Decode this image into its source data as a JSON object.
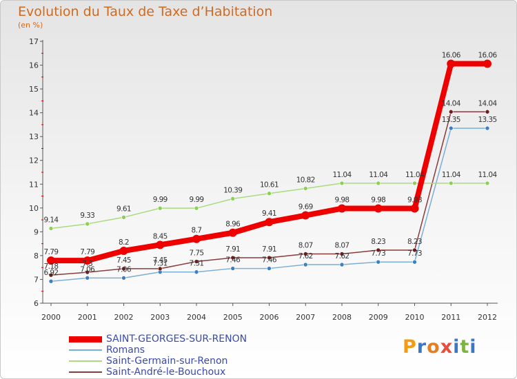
{
  "header": {
    "title": "Evolution du Taux de Taxe d’Habitation",
    "unit": "(en %)"
  },
  "logo": {
    "letters": [
      "P",
      "r",
      "o",
      "x",
      "i",
      "t",
      "i"
    ],
    "colors": [
      "#f39c12",
      "#3a78c3",
      "#e67e22",
      "#e74c3c",
      "#3a78c3",
      "#7cb342",
      "#3a78c3"
    ]
  },
  "colors": {
    "axis": "#555555",
    "tick_text": "#333333",
    "label_text": "#333333"
  },
  "chart_data": {
    "type": "line",
    "title": "Evolution du Taux de Taxe d’Habitation",
    "ylabel": "(en %)",
    "xlabel": "",
    "x": [
      "2000",
      "2001",
      "2002",
      "2003",
      "2004",
      "2005",
      "2006",
      "2007",
      "2008",
      "2009",
      "2010",
      "2011",
      "2012"
    ],
    "ylim": [
      6,
      17
    ],
    "yticks": [
      6,
      7,
      8,
      9,
      10,
      11,
      12,
      13,
      14,
      15,
      16,
      17
    ],
    "grid": false,
    "legend": "bottom-left",
    "series": [
      {
        "name": "SAINT-GEORGES-SUR-RENON",
        "values": [
          7.79,
          7.79,
          8.2,
          8.45,
          8.7,
          8.96,
          9.41,
          9.69,
          9.98,
          9.98,
          9.98,
          16.06,
          16.06
        ],
        "labels": [
          "7.79",
          "7.79",
          "8.2",
          "8.45",
          "8.7",
          "8.96",
          "9.41",
          "9.69",
          "9.98",
          "9.98",
          "9.98",
          "16.06",
          "16.06"
        ],
        "color": "#ee0000",
        "marker": "#ee0000",
        "width": 8
      },
      {
        "name": "Romans",
        "values": [
          6.92,
          7.06,
          7.06,
          7.31,
          7.31,
          7.46,
          7.46,
          7.62,
          7.62,
          7.73,
          7.73,
          13.35,
          13.35
        ],
        "labels": [
          "6.92",
          "7.06",
          "7.06",
          "7.31",
          "7.31",
          "7.46",
          "7.46",
          "7.62",
          "7.62",
          "7.73",
          "7.73",
          "13.35",
          "13.35"
        ],
        "color": "#7aaed6",
        "marker": "#3d7fc0",
        "width": 1.5
      },
      {
        "name": "Saint-Germain-sur-Renon",
        "values": [
          9.14,
          9.33,
          9.61,
          9.99,
          9.99,
          10.39,
          10.61,
          10.82,
          11.04,
          11.04,
          11.04,
          11.04,
          11.04
        ],
        "labels": [
          "9.14",
          "9.33",
          "9.61",
          "9.99",
          "9.99",
          "10.39",
          "10.61",
          "10.82",
          "11.04",
          "11.04",
          "11.04",
          "11.04",
          "11.04"
        ],
        "color": "#a8db7e",
        "marker": "#8ccf55",
        "width": 1.5
      },
      {
        "name": "Saint-André-le-Bouchoux",
        "values": [
          7.18,
          7.3,
          7.45,
          7.45,
          7.75,
          7.91,
          7.91,
          8.07,
          8.07,
          8.23,
          8.23,
          14.04,
          14.04
        ],
        "labels": [
          "7.18",
          "7.3",
          "7.45",
          "7.45",
          "7.75",
          "7.91",
          "7.91",
          "8.07",
          "8.07",
          "8.23",
          "8.23",
          "14.04",
          "14.04"
        ],
        "color": "#8b3a3a",
        "marker": "#6b1f1f",
        "width": 1.5
      }
    ]
  }
}
